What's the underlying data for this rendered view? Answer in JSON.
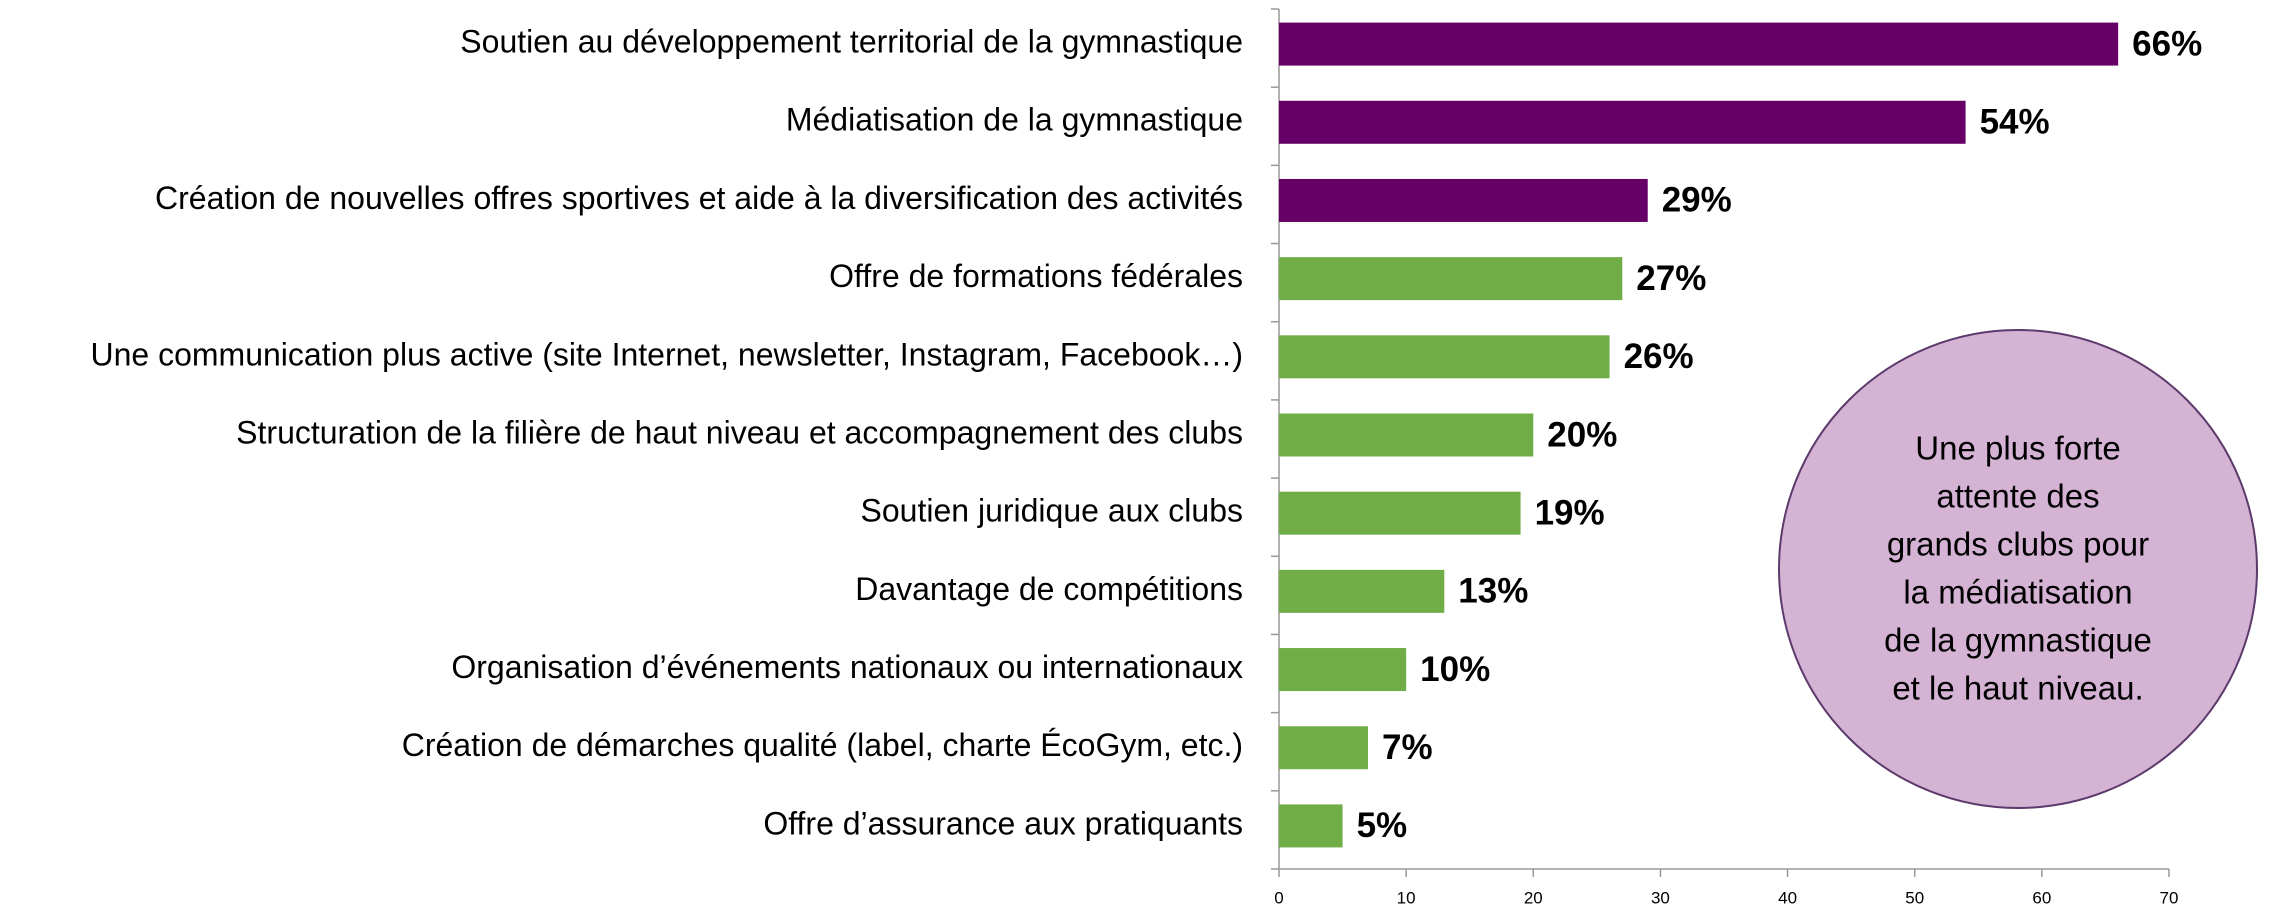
{
  "chart_data": {
    "type": "bar",
    "orientation": "horizontal",
    "categories": [
      "Soutien au développement territorial de la gymnastique",
      "Médiatisation de la gymnastique",
      "Création de nouvelles offres sportives et aide à la diversification des activités",
      "Offre de formations fédérales",
      "Une communication plus active (site Internet, newsletter, Instagram, Facebook…)",
      "Structuration de la filière de haut niveau et accompagnement des clubs",
      "Soutien juridique aux clubs",
      "Davantage de compétitions",
      "Organisation d’événements nationaux ou internationaux",
      "Création de démarches qualité (label, charte ÉcoGym, etc.)",
      "Offre d’assurance aux pratiquants"
    ],
    "values": [
      66,
      54,
      29,
      27,
      26,
      20,
      19,
      13,
      10,
      7,
      5
    ],
    "value_labels": [
      "66%",
      "54%",
      "29%",
      "27%",
      "26%",
      "20%",
      "19%",
      "13%",
      "10%",
      "7%",
      "5%"
    ],
    "colors": [
      "#660066",
      "#660066",
      "#660066",
      "#70ad47",
      "#70ad47",
      "#70ad47",
      "#70ad47",
      "#70ad47",
      "#70ad47",
      "#70ad47",
      "#70ad47"
    ],
    "xlim": [
      0,
      70
    ],
    "xticks": [
      0,
      10,
      20,
      30,
      40,
      50,
      60,
      70
    ],
    "annotation": [
      "Une plus forte",
      "attente des",
      "grands clubs pour",
      "la médiatisation",
      "de la gymnastique",
      "et le haut niveau."
    ]
  }
}
